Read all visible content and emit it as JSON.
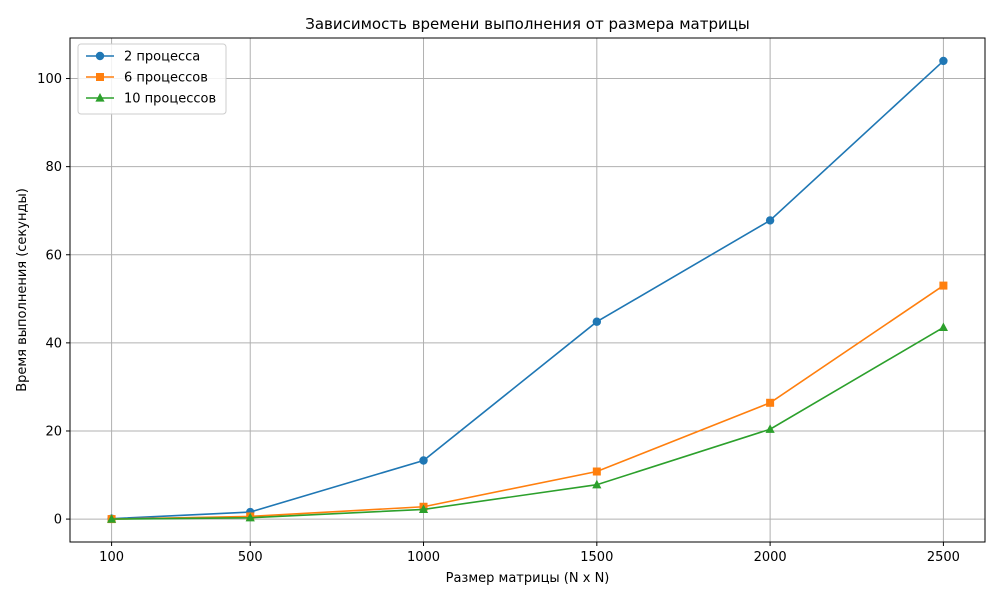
{
  "chart_data": {
    "type": "line",
    "title": "Зависимость времени выполнения от размера матрицы",
    "xlabel": "Размер матрицы (N x N)",
    "ylabel": "Время выполнения (секунды)",
    "x": [
      100,
      500,
      1000,
      1500,
      2000,
      2500
    ],
    "x_ticks": [
      "100",
      "500",
      "1000",
      "1500",
      "2000",
      "2500"
    ],
    "xlim": [
      -20,
      2620
    ],
    "ylim": [
      -5.2,
      109.2
    ],
    "y_ticks": [
      0,
      20,
      40,
      60,
      80,
      100
    ],
    "grid": true,
    "legend_position": "top-left",
    "series": [
      {
        "name": "2 процесса",
        "color": "#1f77b4",
        "marker": "circle",
        "values": [
          0.1,
          1.6,
          13.3,
          44.8,
          67.8,
          104.0
        ]
      },
      {
        "name": "6 процессов",
        "color": "#ff7f0e",
        "marker": "square",
        "values": [
          0.0,
          0.6,
          2.8,
          10.8,
          26.4,
          53.0
        ]
      },
      {
        "name": "10 процессов",
        "color": "#2ca02c",
        "marker": "triangle",
        "values": [
          0.0,
          0.3,
          2.2,
          7.8,
          20.4,
          43.5
        ]
      }
    ]
  }
}
